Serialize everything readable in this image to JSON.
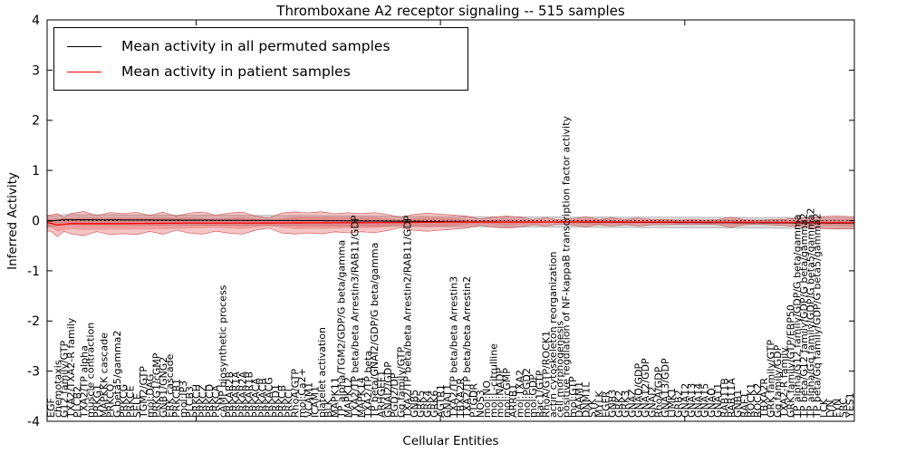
{
  "figure": {
    "title": "Thromboxane A2 receptor signaling -- 515 samples",
    "xlabel": "Cellular Entities",
    "ylabel": "Inferred Activity"
  },
  "legend": {
    "items": [
      {
        "label": "Mean activity in all permuted samples",
        "color": "#000000"
      },
      {
        "label": "Mean activity in patient samples",
        "color": "#ff0000"
      }
    ]
  },
  "chart_data": {
    "type": "line",
    "title": "Thromboxane A2 receptor signaling -- 515 samples",
    "xlabel": "Cellular Entities",
    "ylabel": "Inferred Activity",
    "ylim": [
      -4,
      4
    ],
    "yticks": [
      -4,
      -3,
      -2,
      -1,
      0,
      1,
      2,
      3,
      4
    ],
    "xtick_indices": [
      22,
      59,
      96
    ],
    "grid": false,
    "legend_position": "upper left",
    "colors": {
      "permuted_line": "#000000",
      "patient_line": "#ff0000",
      "patient_band": "#e05050",
      "patient_band_edge": "#cc4444",
      "permuted_band": "#808080",
      "permuted_band_edge": "#999999"
    },
    "categories": [
      "EGF",
      "chemotaxis",
      "G12 family/GTP",
      "TXA2/TXA2-R family",
      "PLCB2",
      "TXA2/TP alpha",
      "muscle contraction",
      "PRKG1",
      "MAPKKK cascade",
      "PRKCQ",
      "G beta5/gamma2",
      "PRKCG",
      "PRKCE",
      "SELE",
      "TGM2/GTP",
      "mol:DAG",
      "PRKG1/cGMP",
      "GNB1/GNG2",
      "ERK cascade",
      "PRKCB1",
      "mol:IP3",
      "PLCB3",
      "PRKCH",
      "PRKCZ",
      "PRKCD",
      "PRKCA",
      "cAMP biosynthetic process",
      "PRKAR2B",
      "PRKAR1A",
      "PRKAR2A",
      "PRKAR1B",
      "PRKACA",
      "PRKACB",
      "PRKACG",
      "PRKD1",
      "PRKCB",
      "PRKCI",
      "RhoA/GTP",
      "mol:Ca2+",
      "VCAM1",
      "ICAM1",
      "platelet activation",
      "BLK",
      "MAPK11",
      "TP alpha/TGM2/GDP/G beta/gamma",
      "MAPK12",
      "TXA2/TP beta/beta Arrestin3/RAB11/GDP",
      "MAPK14",
      "TXA2/TP beta",
      "TP beta/GNAI2/GDP/G beta/gamma",
      "ARHGEF1",
      "GNAI2/GDP",
      "PGD2/DP",
      "Gq family/GTP",
      "TXA2/TP beta/beta Arrestin2/RAB11/GDP",
      "GNB5",
      "GRK5",
      "GRK4",
      "GRK6",
      "AGTR1",
      "GNAT1",
      "TXA2/TP beta/beta Arrestin3",
      "TBXA2R",
      "TXA2/TP beta/beta Arrestin2",
      "PTGDR",
      "NOS3",
      "mol:NO",
      "mol:L-citrulline",
      "mol:NADP",
      "mol:cGMP",
      "ARRB1",
      "mol:TXA2",
      "mol:PGD2",
      "mol:GDP",
      "Rac1/GTP",
      "RhoA/GTP/ROCK1",
      "actin cytoskeleton reorganization",
      "cell morphogenesis",
      "positive regulation of NF-kappaB transcription factor activity",
      "mol:GTP",
      "DAAM1",
      "DNM1L",
      "SYK",
      "MYLK",
      "EGFR",
      "GNB3",
      "GRK2",
      "GRK3",
      "GNAZ",
      "GNAQ/GDP",
      "GNA12/GDP",
      "GNAI2",
      "RhoA/GDP",
      "GNA13/GDP",
      "LIMK1",
      "GRB2",
      "GNA12",
      "GNA13",
      "GNA14",
      "GNA15",
      "GNAQ",
      "GNA11",
      "RAB11B",
      "RAB11A",
      "GNB1",
      "RAF1",
      "ROCK1",
      "ROCK2",
      "TBXA2R",
      "GRK family/GTP",
      "Gq family/GDP",
      "TXA2-R family",
      "GRK family/GTP/EBP50",
      "TP alpha/G12 family/GDP/G beta/gamma",
      "TP beta/G12 family/GDP/G beta/gamma2",
      "TP alpha/Gq family/GDP/G beta5/gamma2",
      "TP beta/Gq family/GDP/G beta5/gamma2",
      "LCK",
      "LYN",
      "FYN",
      "SRC",
      "YES1"
    ],
    "series": [
      {
        "name": "Mean activity in all permuted samples",
        "style": "solid",
        "color": "#000000",
        "points": [
          [
            0,
            -0.01
          ],
          [
            2,
            0.02
          ],
          [
            10,
            0.015
          ],
          [
            20,
            0.01
          ],
          [
            30,
            0.005
          ],
          [
            40,
            0.0
          ],
          [
            50,
            -0.01
          ],
          [
            60,
            -0.02
          ],
          [
            70,
            -0.025
          ],
          [
            80,
            -0.03
          ],
          [
            90,
            -0.035
          ],
          [
            100,
            -0.04
          ],
          [
            110,
            -0.045
          ],
          [
            121,
            -0.05
          ]
        ]
      },
      {
        "name": "Mean activity in patient samples",
        "style": "solid",
        "color": "#ff0000",
        "points": [
          [
            0,
            -0.05
          ],
          [
            1,
            -0.09
          ],
          [
            3,
            -0.06
          ],
          [
            10,
            -0.06
          ],
          [
            20,
            -0.05
          ],
          [
            30,
            -0.05
          ],
          [
            40,
            -0.045
          ],
          [
            50,
            -0.04
          ],
          [
            60,
            -0.03
          ],
          [
            70,
            -0.03
          ],
          [
            80,
            -0.025
          ],
          [
            90,
            -0.03
          ],
          [
            100,
            -0.03
          ],
          [
            110,
            -0.035
          ],
          [
            121,
            -0.04
          ]
        ]
      },
      {
        "name": "zero reference",
        "style": "dotted",
        "color": "#000000",
        "points": [
          [
            0,
            0
          ],
          [
            121,
            0
          ]
        ]
      }
    ],
    "bands": [
      {
        "name": "permuted std band",
        "center_series": 0,
        "color": "#808080",
        "opacity": 0.3,
        "edge": "#999999",
        "halfwidth_points": [
          [
            0,
            0.1
          ],
          [
            30,
            0.1
          ],
          [
            60,
            0.1
          ],
          [
            90,
            0.105
          ],
          [
            121,
            0.11
          ]
        ]
      },
      {
        "name": "patient std band outer",
        "center_series": 1,
        "color": "#e05050",
        "opacity": 0.33,
        "edge": "#cc4444",
        "halfwidth_points": [
          [
            0,
            0.16
          ],
          [
            1,
            0.23
          ],
          [
            2,
            0.14
          ],
          [
            3,
            0.2
          ],
          [
            5,
            0.24
          ],
          [
            7,
            0.16
          ],
          [
            9,
            0.22
          ],
          [
            11,
            0.2
          ],
          [
            13,
            0.22
          ],
          [
            15,
            0.16
          ],
          [
            17,
            0.22
          ],
          [
            19,
            0.14
          ],
          [
            21,
            0.2
          ],
          [
            23,
            0.22
          ],
          [
            25,
            0.16
          ],
          [
            27,
            0.2
          ],
          [
            29,
            0.22
          ],
          [
            31,
            0.14
          ],
          [
            33,
            0.1
          ],
          [
            35,
            0.2
          ],
          [
            37,
            0.22
          ],
          [
            39,
            0.2
          ],
          [
            41,
            0.22
          ],
          [
            43,
            0.18
          ],
          [
            45,
            0.2
          ],
          [
            47,
            0.18
          ],
          [
            49,
            0.2
          ],
          [
            51,
            0.16
          ],
          [
            53,
            0.1
          ],
          [
            55,
            0.16
          ],
          [
            57,
            0.18
          ],
          [
            59,
            0.16
          ],
          [
            61,
            0.14
          ],
          [
            63,
            0.12
          ],
          [
            65,
            0.06
          ],
          [
            67,
            0.1
          ],
          [
            69,
            0.12
          ],
          [
            71,
            0.1
          ],
          [
            73,
            0.05
          ],
          [
            75,
            0.08
          ],
          [
            77,
            0.04
          ],
          [
            79,
            0.06
          ],
          [
            81,
            0.1
          ],
          [
            83,
            0.05
          ],
          [
            85,
            0.08
          ],
          [
            87,
            0.05
          ],
          [
            89,
            0.08
          ],
          [
            91,
            0.05
          ],
          [
            93,
            0.05
          ],
          [
            95,
            0.04
          ],
          [
            97,
            0.05
          ],
          [
            99,
            0.04
          ],
          [
            101,
            0.05
          ],
          [
            103,
            0.1
          ],
          [
            105,
            0.05
          ],
          [
            107,
            0.04
          ],
          [
            109,
            0.05
          ],
          [
            111,
            0.06
          ],
          [
            113,
            0.08
          ],
          [
            115,
            0.1
          ],
          [
            117,
            0.12
          ],
          [
            119,
            0.13
          ],
          [
            121,
            0.12
          ]
        ]
      },
      {
        "name": "patient std band inner",
        "center_series": 1,
        "color": "#e05050",
        "opacity": 0.33,
        "edge": "none",
        "halfwidth_points": [
          [
            0,
            0.09
          ],
          [
            1,
            0.13
          ],
          [
            3,
            0.11
          ],
          [
            5,
            0.13
          ],
          [
            9,
            0.12
          ],
          [
            13,
            0.12
          ],
          [
            17,
            0.12
          ],
          [
            21,
            0.11
          ],
          [
            25,
            0.09
          ],
          [
            29,
            0.12
          ],
          [
            33,
            0.06
          ],
          [
            37,
            0.12
          ],
          [
            41,
            0.12
          ],
          [
            45,
            0.11
          ],
          [
            49,
            0.11
          ],
          [
            53,
            0.06
          ],
          [
            57,
            0.1
          ],
          [
            61,
            0.08
          ],
          [
            65,
            0.03
          ],
          [
            69,
            0.07
          ],
          [
            73,
            0.03
          ],
          [
            77,
            0.02
          ],
          [
            81,
            0.06
          ],
          [
            85,
            0.04
          ],
          [
            89,
            0.04
          ],
          [
            93,
            0.03
          ],
          [
            97,
            0.03
          ],
          [
            101,
            0.03
          ],
          [
            103,
            0.06
          ],
          [
            107,
            0.02
          ],
          [
            111,
            0.03
          ],
          [
            115,
            0.06
          ],
          [
            119,
            0.07
          ],
          [
            121,
            0.07
          ]
        ]
      }
    ]
  }
}
